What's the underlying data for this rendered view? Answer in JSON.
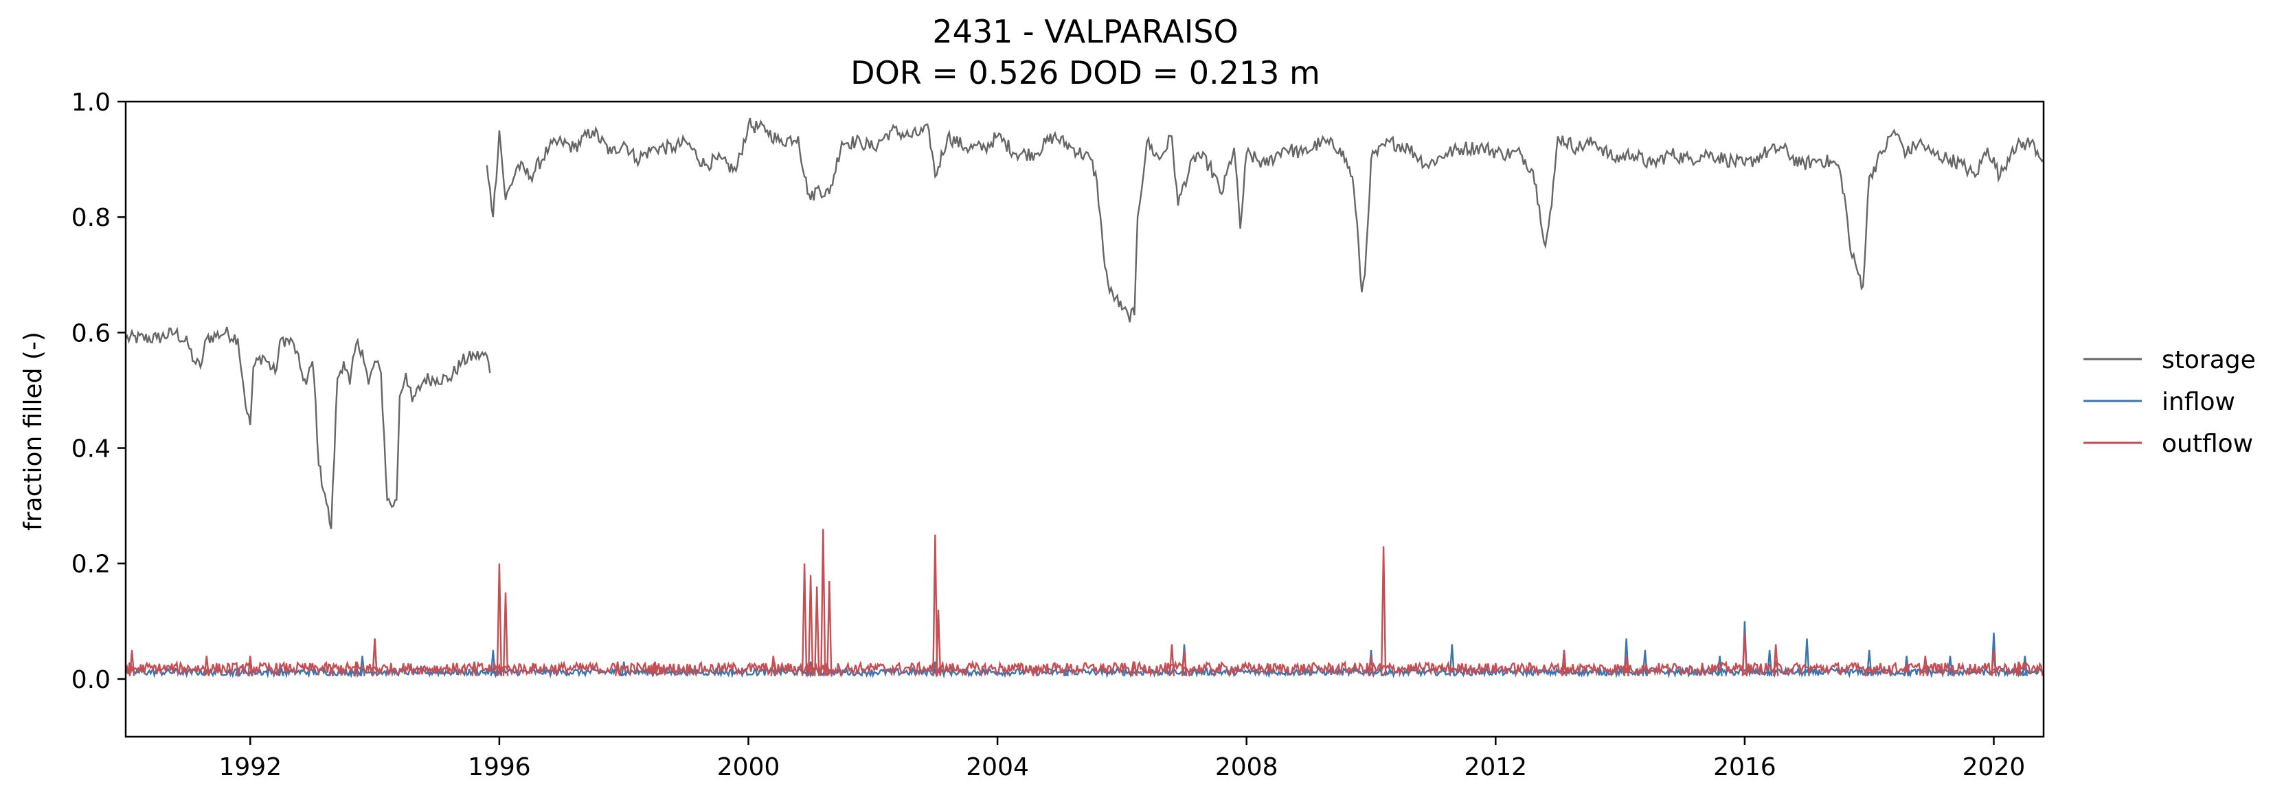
{
  "chart_data": {
    "type": "line",
    "title": "2431 - VALPARAISO",
    "subtitle": "DOR = 0.526  DOD = 0.213 m",
    "ylabel": "fraction filled (-)",
    "xlabel": "",
    "xlim": [
      1990.0,
      2020.8
    ],
    "ylim": [
      -0.1,
      1.0
    ],
    "grid": false,
    "legend_position": "right",
    "xticks": [
      1992,
      1996,
      2000,
      2004,
      2008,
      2012,
      2016,
      2020
    ],
    "xtick_labels": [
      "1992",
      "1996",
      "2000",
      "2004",
      "2008",
      "2012",
      "2016",
      "2020"
    ],
    "yticks": [
      0.0,
      0.2,
      0.4,
      0.6,
      0.8,
      1.0
    ],
    "ytick_labels": [
      "0.0",
      "0.2",
      "0.4",
      "0.6",
      "0.8",
      "1.0"
    ],
    "series": [
      {
        "name": "storage",
        "color": "#666666",
        "segments": [
          [
            [
              1990.0,
              0.59
            ],
            [
              1990.5,
              0.59
            ],
            [
              1990.8,
              0.6
            ],
            [
              1991.0,
              0.58
            ],
            [
              1991.1,
              0.55
            ],
            [
              1991.2,
              0.54
            ],
            [
              1991.3,
              0.59
            ],
            [
              1991.6,
              0.6
            ],
            [
              1991.8,
              0.59
            ],
            [
              1991.9,
              0.5
            ],
            [
              1991.95,
              0.46
            ],
            [
              1992.0,
              0.44
            ],
            [
              1992.05,
              0.54
            ],
            [
              1992.2,
              0.56
            ],
            [
              1992.4,
              0.53
            ],
            [
              1992.5,
              0.59
            ],
            [
              1992.7,
              0.58
            ],
            [
              1992.8,
              0.54
            ],
            [
              1992.9,
              0.51
            ],
            [
              1993.0,
              0.55
            ],
            [
              1993.05,
              0.48
            ],
            [
              1993.1,
              0.37
            ],
            [
              1993.2,
              0.32
            ],
            [
              1993.3,
              0.26
            ],
            [
              1993.4,
              0.52
            ],
            [
              1993.5,
              0.55
            ],
            [
              1993.6,
              0.51
            ],
            [
              1993.7,
              0.58
            ],
            [
              1993.8,
              0.57
            ],
            [
              1993.9,
              0.51
            ],
            [
              1994.0,
              0.55
            ],
            [
              1994.1,
              0.53
            ],
            [
              1994.2,
              0.31
            ],
            [
              1994.3,
              0.3
            ],
            [
              1994.35,
              0.31
            ],
            [
              1994.4,
              0.49
            ],
            [
              1994.5,
              0.53
            ],
            [
              1994.6,
              0.48
            ],
            [
              1994.8,
              0.52
            ],
            [
              1995.0,
              0.52
            ],
            [
              1995.2,
              0.52
            ],
            [
              1995.4,
              0.55
            ],
            [
              1995.6,
              0.56
            ],
            [
              1995.8,
              0.56
            ],
            [
              1995.85,
              0.53
            ]
          ],
          [
            [
              1995.8,
              0.89
            ],
            [
              1995.85,
              0.85
            ],
            [
              1995.9,
              0.8
            ],
            [
              1996.0,
              0.95
            ],
            [
              1996.1,
              0.83
            ],
            [
              1996.3,
              0.89
            ],
            [
              1996.5,
              0.87
            ],
            [
              1996.8,
              0.92
            ],
            [
              1997.0,
              0.93
            ],
            [
              1997.2,
              0.92
            ],
            [
              1997.5,
              0.95
            ],
            [
              1997.8,
              0.91
            ],
            [
              1998.0,
              0.93
            ],
            [
              1998.2,
              0.9
            ],
            [
              1998.5,
              0.92
            ],
            [
              1998.8,
              0.92
            ],
            [
              1999.0,
              0.93
            ],
            [
              1999.3,
              0.89
            ],
            [
              1999.5,
              0.9
            ],
            [
              1999.8,
              0.88
            ],
            [
              2000.0,
              0.96
            ],
            [
              2000.3,
              0.95
            ],
            [
              2000.5,
              0.93
            ],
            [
              2000.8,
              0.94
            ],
            [
              2000.9,
              0.87
            ],
            [
              2001.0,
              0.83
            ],
            [
              2001.1,
              0.85
            ],
            [
              2001.3,
              0.84
            ],
            [
              2001.5,
              0.93
            ],
            [
              2001.8,
              0.93
            ],
            [
              2002.0,
              0.92
            ],
            [
              2002.3,
              0.95
            ],
            [
              2002.6,
              0.94
            ],
            [
              2002.9,
              0.95
            ],
            [
              2003.0,
              0.87
            ],
            [
              2003.2,
              0.94
            ],
            [
              2003.5,
              0.92
            ],
            [
              2003.8,
              0.92
            ],
            [
              2004.0,
              0.94
            ],
            [
              2004.3,
              0.91
            ],
            [
              2004.6,
              0.91
            ],
            [
              2004.9,
              0.94
            ],
            [
              2005.2,
              0.92
            ],
            [
              2005.5,
              0.9
            ],
            [
              2005.6,
              0.86
            ],
            [
              2005.7,
              0.74
            ],
            [
              2005.8,
              0.67
            ],
            [
              2005.9,
              0.66
            ],
            [
              2006.0,
              0.64
            ],
            [
              2006.1,
              0.63
            ],
            [
              2006.2,
              0.63
            ],
            [
              2006.25,
              0.8
            ],
            [
              2006.4,
              0.93
            ],
            [
              2006.6,
              0.9
            ],
            [
              2006.8,
              0.94
            ],
            [
              2006.9,
              0.82
            ],
            [
              2007.0,
              0.86
            ],
            [
              2007.2,
              0.91
            ],
            [
              2007.4,
              0.89
            ],
            [
              2007.6,
              0.84
            ],
            [
              2007.8,
              0.92
            ],
            [
              2007.9,
              0.78
            ],
            [
              2008.0,
              0.91
            ],
            [
              2008.3,
              0.89
            ],
            [
              2008.6,
              0.92
            ],
            [
              2008.9,
              0.91
            ],
            [
              2009.2,
              0.93
            ],
            [
              2009.5,
              0.92
            ],
            [
              2009.7,
              0.87
            ],
            [
              2009.8,
              0.75
            ],
            [
              2009.85,
              0.67
            ],
            [
              2009.9,
              0.7
            ],
            [
              2010.0,
              0.9
            ],
            [
              2010.3,
              0.93
            ],
            [
              2010.6,
              0.92
            ],
            [
              2010.9,
              0.89
            ],
            [
              2011.2,
              0.91
            ],
            [
              2011.5,
              0.92
            ],
            [
              2011.8,
              0.92
            ],
            [
              2012.1,
              0.91
            ],
            [
              2012.4,
              0.91
            ],
            [
              2012.6,
              0.88
            ],
            [
              2012.7,
              0.82
            ],
            [
              2012.8,
              0.75
            ],
            [
              2012.9,
              0.82
            ],
            [
              2013.0,
              0.94
            ],
            [
              2013.3,
              0.92
            ],
            [
              2013.6,
              0.93
            ],
            [
              2013.9,
              0.9
            ],
            [
              2014.2,
              0.91
            ],
            [
              2014.5,
              0.89
            ],
            [
              2014.8,
              0.91
            ],
            [
              2015.1,
              0.9
            ],
            [
              2015.4,
              0.91
            ],
            [
              2015.7,
              0.9
            ],
            [
              2016.0,
              0.89
            ],
            [
              2016.3,
              0.91
            ],
            [
              2016.6,
              0.92
            ],
            [
              2016.9,
              0.89
            ],
            [
              2017.2,
              0.9
            ],
            [
              2017.5,
              0.89
            ],
            [
              2017.6,
              0.84
            ],
            [
              2017.7,
              0.74
            ],
            [
              2017.8,
              0.71
            ],
            [
              2017.9,
              0.68
            ],
            [
              2018.0,
              0.87
            ],
            [
              2018.2,
              0.91
            ],
            [
              2018.4,
              0.95
            ],
            [
              2018.6,
              0.91
            ],
            [
              2018.8,
              0.93
            ],
            [
              2019.0,
              0.91
            ],
            [
              2019.3,
              0.9
            ],
            [
              2019.5,
              0.89
            ],
            [
              2019.7,
              0.87
            ],
            [
              2019.9,
              0.92
            ],
            [
              2020.1,
              0.87
            ],
            [
              2020.3,
              0.92
            ],
            [
              2020.6,
              0.93
            ],
            [
              2020.8,
              0.9
            ]
          ]
        ]
      },
      {
        "name": "inflow",
        "color": "#3b75af",
        "spikes": [
          [
            1991.8,
            0.02
          ],
          [
            1992.5,
            0.02
          ],
          [
            1993.8,
            0.04
          ],
          [
            1994.0,
            0.07
          ],
          [
            1995.9,
            0.05
          ],
          [
            1998.0,
            0.03
          ],
          [
            2001.0,
            0.03
          ],
          [
            2003.0,
            0.03
          ],
          [
            2005.1,
            0.02
          ],
          [
            2007.0,
            0.06
          ],
          [
            2010.0,
            0.05
          ],
          [
            2011.3,
            0.06
          ],
          [
            2013.1,
            0.05
          ],
          [
            2014.1,
            0.07
          ],
          [
            2014.4,
            0.05
          ],
          [
            2015.6,
            0.04
          ],
          [
            2016.0,
            0.1
          ],
          [
            2016.4,
            0.05
          ],
          [
            2017.0,
            0.07
          ],
          [
            2018.0,
            0.05
          ],
          [
            2018.6,
            0.04
          ],
          [
            2019.3,
            0.04
          ],
          [
            2020.0,
            0.08
          ],
          [
            2020.5,
            0.04
          ]
        ]
      },
      {
        "name": "outflow",
        "color": "#c44e52",
        "spikes": [
          [
            1990.1,
            0.05
          ],
          [
            1991.3,
            0.04
          ],
          [
            1992.0,
            0.04
          ],
          [
            1993.3,
            0.02
          ],
          [
            1993.7,
            0.03
          ],
          [
            1994.0,
            0.07
          ],
          [
            1995.6,
            0.03
          ],
          [
            1996.0,
            0.2
          ],
          [
            1996.1,
            0.15
          ],
          [
            1997.9,
            0.03
          ],
          [
            1998.5,
            0.03
          ],
          [
            2000.4,
            0.04
          ],
          [
            2000.9,
            0.2
          ],
          [
            2001.0,
            0.18
          ],
          [
            2001.1,
            0.16
          ],
          [
            2001.2,
            0.26
          ],
          [
            2001.3,
            0.17
          ],
          [
            2003.0,
            0.25
          ],
          [
            2003.05,
            0.12
          ],
          [
            2004.6,
            0.02
          ],
          [
            2006.2,
            0.03
          ],
          [
            2006.8,
            0.06
          ],
          [
            2007.0,
            0.05
          ],
          [
            2010.0,
            0.04
          ],
          [
            2010.2,
            0.23
          ],
          [
            2013.1,
            0.05
          ],
          [
            2014.1,
            0.04
          ],
          [
            2016.0,
            0.08
          ],
          [
            2016.5,
            0.06
          ],
          [
            2018.9,
            0.04
          ],
          [
            2020.0,
            0.05
          ],
          [
            2020.4,
            0.03
          ]
        ]
      }
    ]
  }
}
